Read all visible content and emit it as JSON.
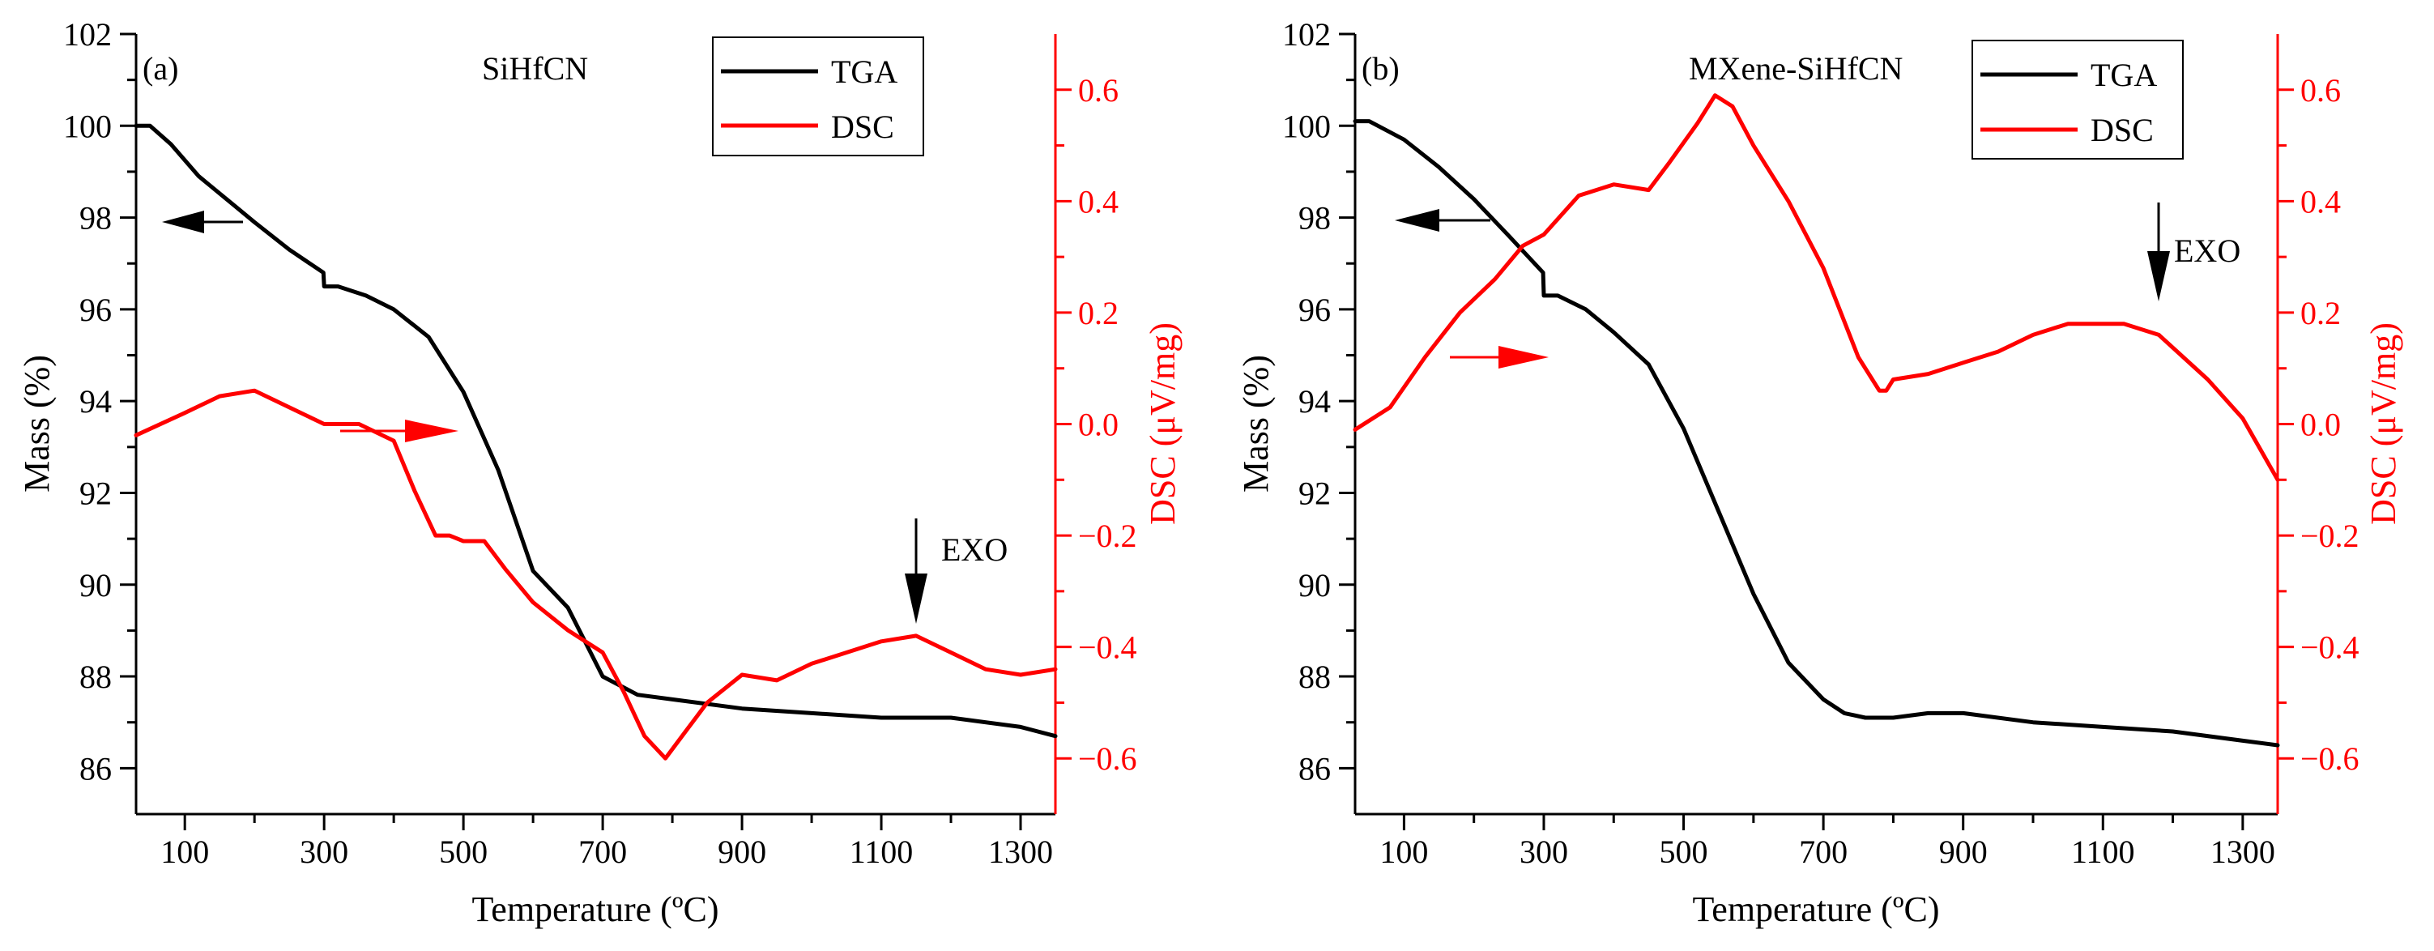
{
  "colors": {
    "tga": "#000000",
    "dsc": "#ff0000"
  },
  "chart_data": [
    {
      "type": "line",
      "panel_label": "(a)",
      "title": "SiHfCN",
      "xlabel": "Temperature (ºC)",
      "ylabel": "Mass (%)",
      "y2label": "DSC (μV/mg)",
      "xlim": [
        30,
        1350
      ],
      "ylim": [
        85,
        102
      ],
      "y2lim": [
        -0.7,
        0.7
      ],
      "xticks": [
        100,
        300,
        500,
        700,
        900,
        1100,
        1300
      ],
      "xtick_labels": [
        "100",
        "300",
        "500",
        "700",
        "900",
        "1100",
        "1300"
      ],
      "yticks": [
        86,
        88,
        90,
        92,
        94,
        96,
        98,
        100,
        102
      ],
      "ytick_labels": [
        "86",
        "88",
        "90",
        "92",
        "94",
        "96",
        "98",
        "100",
        "102"
      ],
      "y2ticks": [
        -0.6,
        -0.4,
        -0.2,
        0.0,
        0.2,
        0.4,
        0.6
      ],
      "y2tick_labels": [
        "−0.6",
        "−0.4",
        "−0.2",
        "0.0",
        "0.2",
        "0.4",
        "0.6"
      ],
      "legend": [
        "TGA",
        "DSC"
      ],
      "annotation": "EXO",
      "series": [
        {
          "name": "TGA",
          "axis": "left",
          "x": [
            30,
            50,
            80,
            120,
            160,
            200,
            250,
            299,
            300,
            320,
            360,
            400,
            450,
            500,
            550,
            600,
            650,
            700,
            750,
            800,
            900,
            1000,
            1100,
            1200,
            1300,
            1350
          ],
          "values": [
            100.0,
            100.0,
            99.6,
            98.9,
            98.4,
            97.9,
            97.3,
            96.8,
            96.5,
            96.5,
            96.3,
            96.0,
            95.4,
            94.2,
            92.5,
            90.3,
            89.5,
            88.0,
            87.6,
            87.5,
            87.3,
            87.2,
            87.1,
            87.1,
            86.9,
            86.7
          ]
        },
        {
          "name": "DSC",
          "axis": "right",
          "x": [
            30,
            100,
            150,
            200,
            250,
            300,
            350,
            400,
            430,
            460,
            480,
            500,
            530,
            560,
            600,
            650,
            700,
            730,
            760,
            790,
            820,
            850,
            900,
            950,
            1000,
            1100,
            1150,
            1200,
            1250,
            1300,
            1350
          ],
          "values": [
            -0.02,
            0.02,
            0.05,
            0.06,
            0.03,
            0.0,
            0.0,
            -0.03,
            -0.12,
            -0.2,
            -0.2,
            -0.21,
            -0.21,
            -0.26,
            -0.32,
            -0.37,
            -0.41,
            -0.48,
            -0.56,
            -0.6,
            -0.55,
            -0.5,
            -0.45,
            -0.46,
            -0.43,
            -0.39,
            -0.38,
            -0.41,
            -0.44,
            -0.45,
            -0.44
          ]
        }
      ]
    },
    {
      "type": "line",
      "panel_label": "(b)",
      "title": "MXene-SiHfCN",
      "xlabel": "Temperature (ºC)",
      "ylabel": "Mass (%)",
      "y2label": "DSC (μV/mg)",
      "xlim": [
        30,
        1350
      ],
      "ylim": [
        85,
        102
      ],
      "y2lim": [
        -0.7,
        0.7
      ],
      "xticks": [
        100,
        300,
        500,
        700,
        900,
        1100,
        1300
      ],
      "xtick_labels": [
        "100",
        "300",
        "500",
        "700",
        "900",
        "1100",
        "1300"
      ],
      "yticks": [
        86,
        88,
        90,
        92,
        94,
        96,
        98,
        100,
        102
      ],
      "ytick_labels": [
        "86",
        "88",
        "90",
        "92",
        "94",
        "96",
        "98",
        "100",
        "102"
      ],
      "y2ticks": [
        -0.6,
        -0.4,
        -0.2,
        0.0,
        0.2,
        0.4,
        0.6
      ],
      "y2tick_labels": [
        "−0.6",
        "−0.4",
        "−0.2",
        "0.0",
        "0.2",
        "0.4",
        "0.6"
      ],
      "legend": [
        "TGA",
        "DSC"
      ],
      "annotation": "EXO",
      "series": [
        {
          "name": "TGA",
          "axis": "left",
          "x": [
            30,
            50,
            100,
            150,
            200,
            250,
            299,
            300,
            320,
            360,
            400,
            450,
            500,
            550,
            600,
            650,
            700,
            730,
            760,
            800,
            850,
            900,
            1000,
            1100,
            1200,
            1300,
            1350
          ],
          "values": [
            100.1,
            100.1,
            99.7,
            99.1,
            98.4,
            97.6,
            96.8,
            96.3,
            96.3,
            96.0,
            95.5,
            94.8,
            93.4,
            91.6,
            89.8,
            88.3,
            87.5,
            87.2,
            87.1,
            87.1,
            87.2,
            87.2,
            87.0,
            86.9,
            86.8,
            86.6,
            86.5
          ]
        },
        {
          "name": "DSC",
          "axis": "right",
          "x": [
            30,
            80,
            130,
            180,
            230,
            270,
            300,
            350,
            400,
            450,
            480,
            520,
            545,
            570,
            600,
            650,
            700,
            750,
            780,
            790,
            800,
            850,
            900,
            950,
            1000,
            1050,
            1100,
            1130,
            1180,
            1250,
            1300,
            1350
          ],
          "values": [
            -0.01,
            0.03,
            0.12,
            0.2,
            0.26,
            0.32,
            0.34,
            0.41,
            0.43,
            0.42,
            0.47,
            0.54,
            0.59,
            0.57,
            0.5,
            0.4,
            0.28,
            0.12,
            0.06,
            0.06,
            0.08,
            0.09,
            0.11,
            0.13,
            0.16,
            0.18,
            0.18,
            0.18,
            0.16,
            0.08,
            0.01,
            -0.1
          ]
        }
      ]
    }
  ]
}
